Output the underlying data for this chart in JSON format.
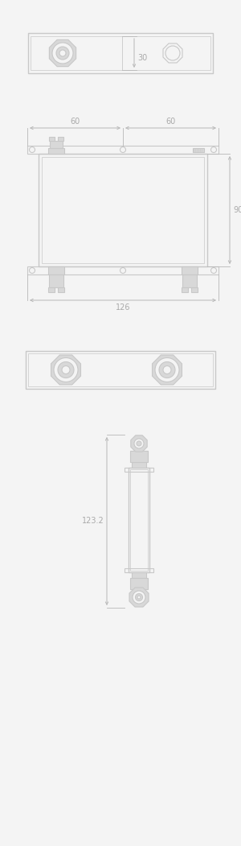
{
  "bg_color": "#f4f4f4",
  "line_color": "#c8c8c8",
  "fill_color": "#d8d8d8",
  "text_color": "#aaaaaa",
  "dim_color": "#b8b8b8",
  "lw": 0.8,
  "lw_thick": 1.0,
  "fig_w": 3.0,
  "fig_h": 10.51,
  "annotation_fontsize": 7.0
}
